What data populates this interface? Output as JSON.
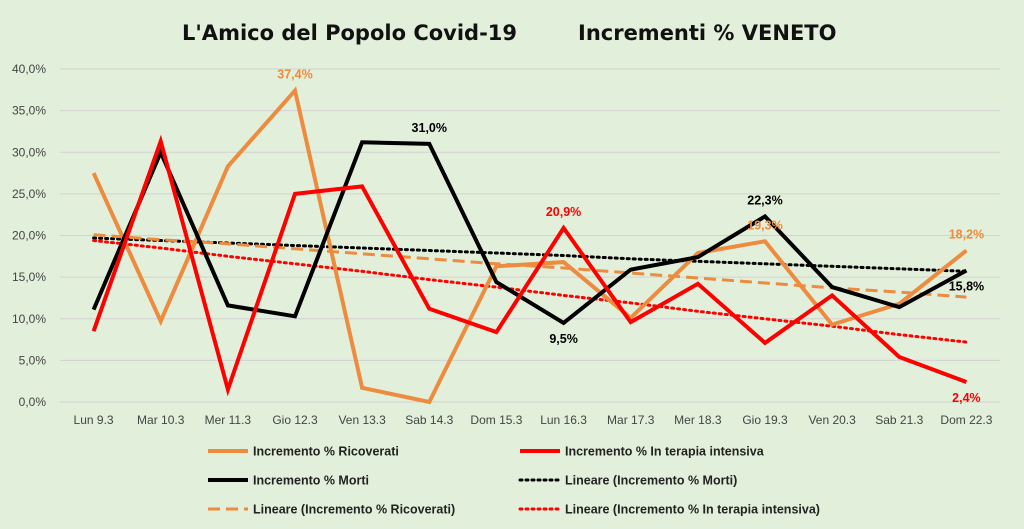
{
  "chart_data": {
    "type": "line",
    "title": "L'Amico del Popolo Covid-19",
    "subtitle": "Incrementi % VENETO",
    "xlabel": "",
    "ylabel": "",
    "categories": [
      "Lun 9.3",
      "Mar 10.3",
      "Mer 11.3",
      "Gio 12.3",
      "Ven 13.3",
      "Sab 14.3",
      "Dom 15.3",
      "Lun 16.3",
      "Mar 17.3",
      "Mer 18.3",
      "Gio 19.3",
      "Ven 20.3",
      "Sab 21.3",
      "Dom 22.3"
    ],
    "ylim": [
      0,
      40
    ],
    "yticks": [
      "0,0%",
      "5,0%",
      "10,0%",
      "15,0%",
      "20,0%",
      "25,0%",
      "30,0%",
      "35,0%",
      "40,0%"
    ],
    "grid": true,
    "legend_position": "bottom",
    "series": [
      {
        "name": "Incremento % Ricoverati",
        "color": "#ed8b3f",
        "style": "solid",
        "values": [
          27.5,
          9.7,
          28.3,
          37.4,
          1.7,
          0.0,
          16.3,
          16.8,
          10.1,
          17.9,
          19.3,
          9.3,
          11.8,
          18.2
        ]
      },
      {
        "name": "Incremento % In terapia intensiva",
        "color": "#ff0000",
        "style": "solid",
        "values": [
          8.5,
          31.3,
          1.5,
          25.0,
          25.9,
          11.2,
          8.4,
          20.9,
          9.6,
          14.2,
          7.1,
          12.8,
          5.4,
          2.4
        ]
      },
      {
        "name": "Incremento % Morti",
        "color": "#000000",
        "style": "solid",
        "values": [
          11.1,
          30.0,
          11.6,
          10.3,
          31.2,
          31.0,
          14.4,
          9.5,
          15.9,
          17.4,
          22.3,
          13.8,
          11.4,
          15.8
        ]
      },
      {
        "name": "Lineare (Incremento % Morti)",
        "color": "#000000",
        "style": "dotted",
        "values": [
          19.7,
          19.4,
          19.1,
          18.8,
          18.5,
          18.2,
          17.9,
          17.6,
          17.2,
          16.9,
          16.6,
          16.3,
          16.0,
          15.7
        ]
      },
      {
        "name": "Lineare (Incremento % Ricoverati)",
        "color": "#ed8b3f",
        "style": "dashed",
        "values": [
          20.1,
          19.5,
          19.0,
          18.4,
          17.8,
          17.2,
          16.6,
          16.1,
          15.5,
          14.9,
          14.3,
          13.7,
          13.2,
          12.6
        ]
      },
      {
        "name": "Lineare (Incremento % In terapia intensiva)",
        "color": "#ff0000",
        "style": "dotted",
        "values": [
          19.4,
          18.5,
          17.5,
          16.6,
          15.7,
          14.7,
          13.8,
          12.8,
          11.9,
          10.9,
          10.0,
          9.1,
          8.1,
          7.2
        ]
      }
    ],
    "data_labels": [
      {
        "series": 0,
        "index": 3,
        "text": "37,4%",
        "color": "#ed8b3f",
        "pos": "above"
      },
      {
        "series": 2,
        "index": 5,
        "text": "31,0%",
        "color": "#000000",
        "pos": "above"
      },
      {
        "series": 1,
        "index": 7,
        "text": "20,9%",
        "color": "#ff0000",
        "pos": "above"
      },
      {
        "series": 2,
        "index": 7,
        "text": "9,5%",
        "color": "#000000",
        "pos": "below"
      },
      {
        "series": 2,
        "index": 10,
        "text": "22,3%",
        "color": "#000000",
        "pos": "above"
      },
      {
        "series": 0,
        "index": 10,
        "text": "19,3%",
        "color": "#ed8b3f",
        "pos": "above"
      },
      {
        "series": 0,
        "index": 13,
        "text": "18,2%",
        "color": "#ed8b3f",
        "pos": "above"
      },
      {
        "series": 2,
        "index": 13,
        "text": "15,8%",
        "color": "#000000",
        "pos": "below"
      },
      {
        "series": 1,
        "index": 13,
        "text": "2,4%",
        "color": "#ff0000",
        "pos": "below"
      }
    ]
  }
}
